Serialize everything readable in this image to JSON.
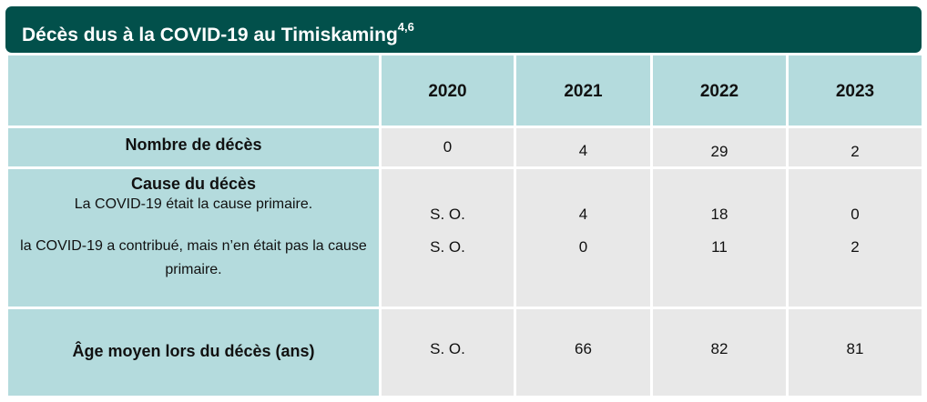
{
  "title": {
    "text": "Décès dus à la COVID-19 au Timiskaming",
    "superscript": "4,6"
  },
  "table": {
    "years": [
      "2020",
      "2021",
      "2022",
      "2023"
    ],
    "deaths": {
      "label": "Nombre de décès",
      "values": [
        "0",
        "4",
        "29",
        "2"
      ]
    },
    "cause": {
      "label": "Cause du décès",
      "primary_label": "La COVID-19 était la cause primaire.",
      "contributing_label": "la COVID-19 a contribué, mais n’en était pas la cause primaire.",
      "primary_values": [
        "S. O.",
        "4",
        "18",
        "0"
      ],
      "contributing_values": [
        "S. O.",
        "0",
        "11",
        "2"
      ]
    },
    "average_age": {
      "label": "Âge moyen lors du décès (ans)",
      "values": [
        "S. O.",
        "66",
        "82",
        "81"
      ]
    }
  },
  "colors": {
    "title_background": "#02504b",
    "label_cells": "#b4dbdd",
    "value_cells": "#e8e8e8"
  }
}
